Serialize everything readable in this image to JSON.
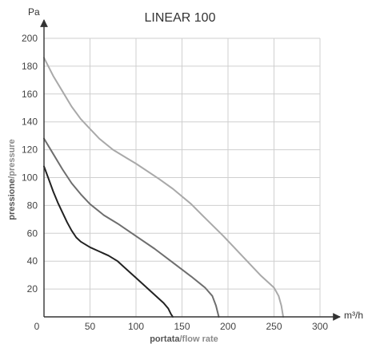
{
  "chart_data": {
    "type": "line",
    "title": "LINEAR 100",
    "ylabel_unit": "Pa",
    "xlabel_unit": "m³/h",
    "ylabel_main": "pressione",
    "ylabel_sub": "/pressure",
    "xlabel_main": "portata",
    "xlabel_sub": "/flow rate",
    "xlim": [
      0,
      300
    ],
    "ylim": [
      0,
      200
    ],
    "x_ticks": [
      "0",
      "50",
      "100",
      "150",
      "200",
      "250",
      "300"
    ],
    "y_ticks": [
      "20",
      "40",
      "60",
      "80",
      "100",
      "120",
      "140",
      "160",
      "180",
      "200"
    ],
    "grid": true,
    "series": [
      {
        "color": "#a9a9a9",
        "points": [
          [
            0,
            186
          ],
          [
            10,
            173
          ],
          [
            20,
            162
          ],
          [
            30,
            151
          ],
          [
            40,
            142
          ],
          [
            50,
            135
          ],
          [
            60,
            128
          ],
          [
            75,
            120
          ],
          [
            90,
            114
          ],
          [
            100,
            110
          ],
          [
            125,
            99
          ],
          [
            140,
            92
          ],
          [
            160,
            81
          ],
          [
            175,
            71
          ],
          [
            195,
            58
          ],
          [
            215,
            44
          ],
          [
            235,
            30
          ],
          [
            250,
            21
          ],
          [
            255,
            15
          ],
          [
            258,
            8
          ],
          [
            260,
            0
          ]
        ]
      },
      {
        "color": "#6e6e6e",
        "points": [
          [
            0,
            128
          ],
          [
            10,
            117
          ],
          [
            20,
            106
          ],
          [
            30,
            96
          ],
          [
            40,
            88
          ],
          [
            50,
            81
          ],
          [
            65,
            73
          ],
          [
            80,
            67
          ],
          [
            100,
            58
          ],
          [
            120,
            49
          ],
          [
            140,
            39
          ],
          [
            160,
            29
          ],
          [
            175,
            21
          ],
          [
            183,
            15
          ],
          [
            187,
            8
          ],
          [
            190,
            0
          ]
        ]
      },
      {
        "color": "#222222",
        "points": [
          [
            0,
            108
          ],
          [
            5,
            99
          ],
          [
            10,
            90
          ],
          [
            15,
            82
          ],
          [
            20,
            75
          ],
          [
            25,
            68
          ],
          [
            30,
            62
          ],
          [
            35,
            57
          ],
          [
            40,
            54
          ],
          [
            50,
            50
          ],
          [
            60,
            47
          ],
          [
            70,
            44
          ],
          [
            80,
            40
          ],
          [
            90,
            34
          ],
          [
            100,
            28
          ],
          [
            110,
            22
          ],
          [
            120,
            16
          ],
          [
            130,
            10
          ],
          [
            135,
            6
          ],
          [
            138,
            2
          ],
          [
            140,
            0
          ]
        ]
      }
    ]
  }
}
